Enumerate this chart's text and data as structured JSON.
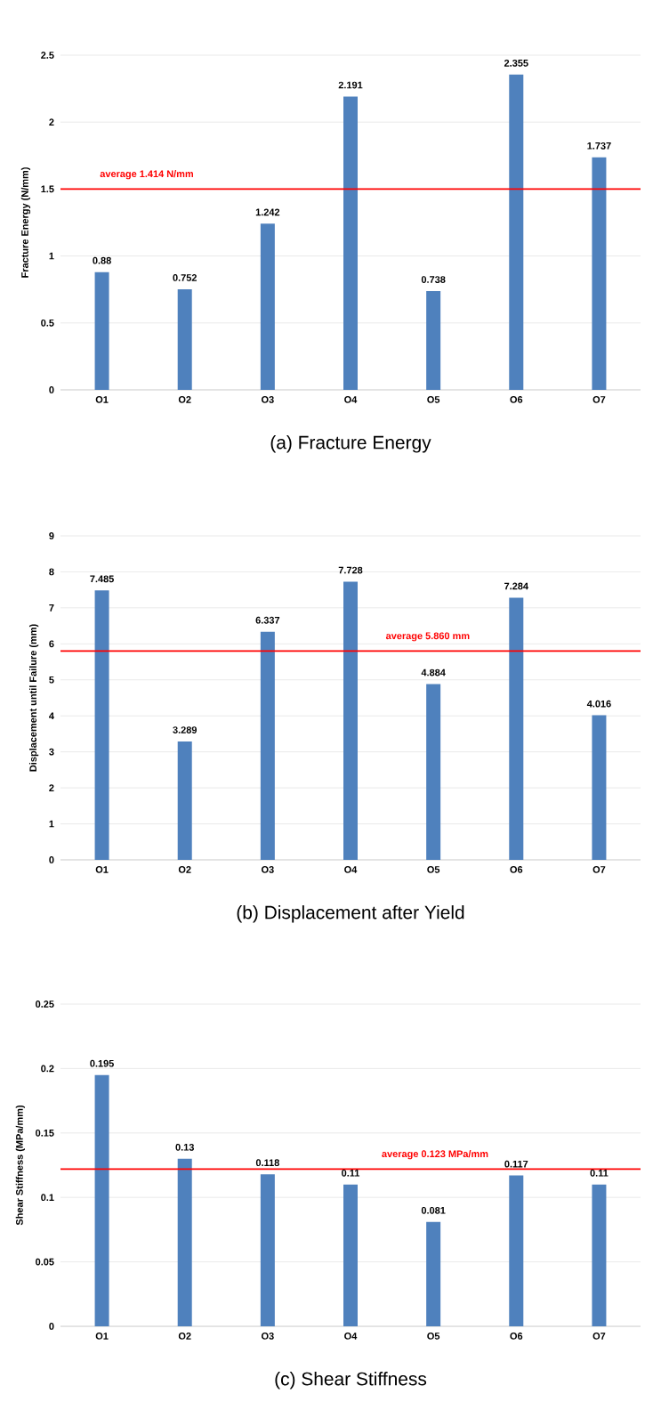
{
  "chart_data": [
    {
      "type": "bar",
      "title": "(a) Fracture Energy",
      "ylabel": "Fracture Energy (N/mm)",
      "categories": [
        "O1",
        "O2",
        "O3",
        "O4",
        "O5",
        "O6",
        "O7"
      ],
      "values": [
        0.88,
        0.752,
        1.242,
        2.191,
        0.738,
        2.355,
        1.737
      ],
      "color": "#4f81bd",
      "ylim": [
        0,
        2.5
      ],
      "yticks": [
        0,
        0.5,
        1,
        1.5,
        2,
        2.5
      ],
      "grid": "y",
      "data_labels": true,
      "ref_lines": [
        {
          "axis": "y",
          "value": 1.5,
          "label": "average 1.414 N/mm",
          "color": "#ff0000"
        }
      ]
    },
    {
      "type": "bar",
      "title": "(b) Displacement after Yield",
      "ylabel": "Displacement until Failure (mm)",
      "categories": [
        "O1",
        "O2",
        "O3",
        "O4",
        "O5",
        "O6",
        "O7"
      ],
      "values": [
        7.485,
        3.289,
        6.337,
        7.728,
        4.884,
        7.284,
        4.016
      ],
      "color": "#4f81bd",
      "ylim": [
        0,
        9
      ],
      "yticks": [
        0,
        1,
        2,
        3,
        4,
        5,
        6,
        7,
        8,
        9
      ],
      "grid": "y",
      "data_labels": true,
      "ref_lines": [
        {
          "axis": "y",
          "value": 5.8,
          "label": "average 5.860 mm",
          "color": "#ff0000"
        }
      ]
    },
    {
      "type": "bar",
      "title": "(c) Shear Stiffness",
      "ylabel": "Shear Stiffness (MPa/mm)",
      "categories": [
        "O1",
        "O2",
        "O3",
        "O4",
        "O5",
        "O6",
        "O7"
      ],
      "values": [
        0.195,
        0.13,
        0.118,
        0.11,
        0.081,
        0.117,
        0.11
      ],
      "color": "#4f81bd",
      "ylim": [
        0,
        0.25
      ],
      "yticks": [
        0,
        0.05,
        0.1,
        0.15,
        0.2,
        0.25
      ],
      "grid": "y",
      "data_labels": true,
      "ref_lines": [
        {
          "axis": "y",
          "value": 0.122,
          "label": "average 0.123 MPa/mm",
          "color": "#ff0000"
        }
      ]
    }
  ]
}
